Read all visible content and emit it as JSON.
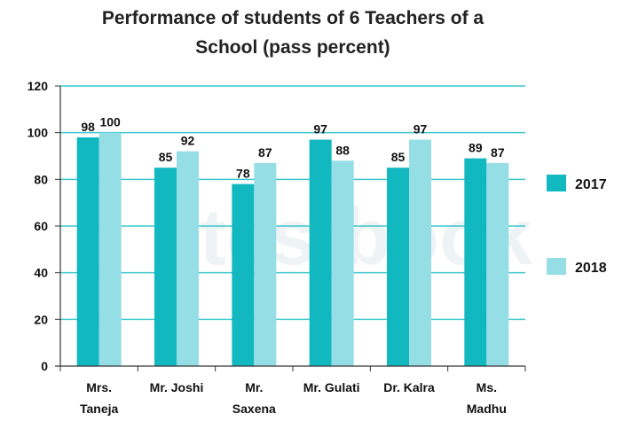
{
  "chart_data": {
    "type": "bar",
    "title_lines": [
      "Performance of students of 6 Teachers of a",
      "School (pass percent)"
    ],
    "watermark": "testbook",
    "categories": [
      [
        "Mrs.",
        "Taneja"
      ],
      [
        "Mr. Joshi"
      ],
      [
        "Mr.",
        "Saxena"
      ],
      [
        "Mr. Gulati"
      ],
      [
        "Dr. Kalra"
      ],
      [
        "Ms.",
        "Madhu"
      ]
    ],
    "series": [
      {
        "name": "2017",
        "values": [
          98,
          85,
          78,
          97,
          85,
          89
        ],
        "color": "#12b8c0"
      },
      {
        "name": "2018",
        "values": [
          100,
          92,
          87,
          88,
          97,
          87
        ],
        "color": "#96dee6"
      }
    ],
    "yticks": [
      0,
      20,
      40,
      60,
      80,
      100,
      120
    ],
    "ylim": [
      0,
      120
    ],
    "grid": true,
    "grid_color": "#3cc7cc",
    "legend_position": "right",
    "data_labels": true
  }
}
